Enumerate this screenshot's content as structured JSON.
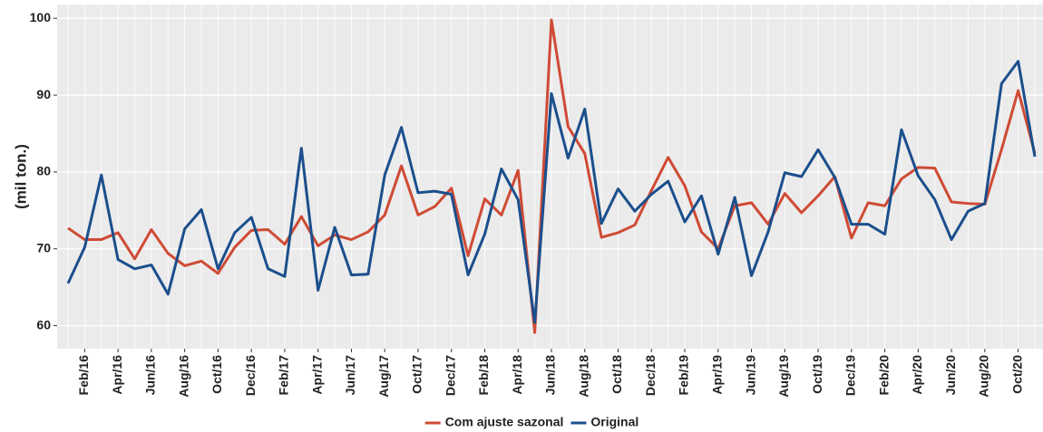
{
  "chart_data": {
    "type": "line",
    "y_label": "(mil ton.)",
    "categories": [
      null,
      "Feb/16",
      null,
      "Apr/16",
      null,
      "Jun/16",
      null,
      "Aug/16",
      null,
      "Oct/16",
      null,
      "Dec/16",
      null,
      "Feb/17",
      null,
      "Apr/17",
      null,
      "Jun/17",
      null,
      "Aug/17",
      null,
      "Oct/17",
      null,
      "Dec/17",
      null,
      "Feb/18",
      null,
      "Apr/18",
      null,
      "Jun/18",
      null,
      "Aug/18",
      null,
      "Oct/18",
      null,
      "Dec/18",
      null,
      "Feb/19",
      null,
      "Apr/19",
      null,
      "Jun/19",
      null,
      "Aug/19",
      null,
      "Oct/19",
      null,
      "Dec/19",
      null,
      "Feb/20",
      null,
      "Apr/20",
      null,
      "Jun/20",
      null,
      "Aug/20",
      null,
      "Oct/20",
      null
    ],
    "series": [
      {
        "name": "Com ajuste sazonal",
        "color": "#cf4b35",
        "values": [
          72.7,
          71.2,
          71.2,
          72.1,
          68.7,
          72.5,
          69.4,
          67.8,
          68.4,
          66.8,
          70.2,
          72.4,
          72.5,
          70.6,
          74.2,
          70.4,
          71.8,
          71.2,
          72.2,
          74.4,
          80.8,
          74.4,
          75.5,
          77.9,
          69.1,
          76.5,
          74.4,
          80.2,
          59.1,
          99.8,
          85.9,
          82.4,
          71.5,
          72.1,
          73.1,
          77.6,
          81.9,
          78.2,
          72.2,
          70.0,
          75.6,
          76.0,
          73.2,
          77.2,
          74.7,
          76.9,
          79.4,
          71.4,
          76.0,
          75.6,
          79.1,
          80.6,
          80.5,
          76.1,
          75.9,
          75.8,
          82.9,
          90.6,
          82.4
        ]
      },
      {
        "name": "Original",
        "color": "#1b4f8c",
        "values": [
          65.5,
          70.2,
          79.6,
          68.6,
          67.4,
          67.9,
          64.1,
          72.6,
          75.1,
          67.4,
          72.1,
          74.1,
          67.4,
          66.4,
          83.1,
          64.6,
          72.8,
          66.6,
          66.7,
          79.6,
          85.8,
          77.3,
          77.5,
          77.1,
          66.6,
          71.9,
          80.4,
          76.4,
          60.4,
          90.2,
          81.8,
          88.2,
          73.3,
          77.8,
          74.9,
          77.1,
          78.8,
          73.5,
          76.9,
          69.3,
          76.7,
          66.5,
          72.2,
          79.9,
          79.4,
          82.9,
          79.3,
          73.2,
          73.2,
          71.9,
          85.5,
          79.5,
          76.4,
          71.2,
          74.9,
          75.9,
          91.5,
          94.4,
          82.0
        ]
      }
    ],
    "ylim": [
      57,
      101.8
    ],
    "yticks": [
      60,
      70,
      80,
      90,
      100
    ],
    "grid": true,
    "legend": "bottom"
  }
}
